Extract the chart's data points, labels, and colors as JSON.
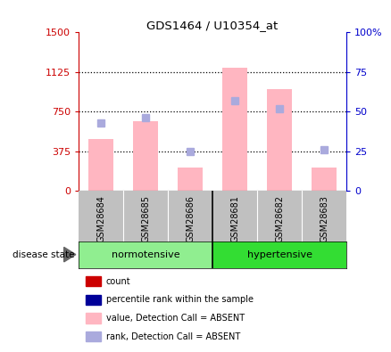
{
  "title": "GDS1464 / U10354_at",
  "samples": [
    "GSM28684",
    "GSM28685",
    "GSM28686",
    "GSM28681",
    "GSM28682",
    "GSM28683"
  ],
  "groups": [
    {
      "label": "normotensive",
      "indices": [
        0,
        1,
        2
      ],
      "color": "#90EE90"
    },
    {
      "label": "hypertensive",
      "indices": [
        3,
        4,
        5
      ],
      "color": "#33DD33"
    }
  ],
  "bar_values": [
    490,
    660,
    225,
    1165,
    960,
    225
  ],
  "rank_values": [
    43,
    46,
    25,
    57,
    52,
    26
  ],
  "left_ylim": [
    0,
    1500
  ],
  "right_ylim": [
    0,
    100
  ],
  "left_yticks": [
    0,
    375,
    750,
    1125,
    1500
  ],
  "right_yticks": [
    0,
    25,
    50,
    75,
    100
  ],
  "left_tick_labels": [
    "0",
    "375",
    "750",
    "1125",
    "1500"
  ],
  "right_tick_labels": [
    "0",
    "25",
    "50",
    "75",
    "100%"
  ],
  "bar_color": "#FFB6C1",
  "rank_color": "#AAAADD",
  "left_axis_color": "#CC0000",
  "right_axis_color": "#0000CC",
  "dotted_lines": [
    375,
    750,
    1125
  ],
  "bar_width": 0.55,
  "legend_items": [
    {
      "label": "count",
      "color": "#CC0000"
    },
    {
      "label": "percentile rank within the sample",
      "color": "#000099"
    },
    {
      "label": "value, Detection Call = ABSENT",
      "color": "#FFB6C1"
    },
    {
      "label": "rank, Detection Call = ABSENT",
      "color": "#AAAADD"
    }
  ],
  "disease_state_label": "disease state",
  "background_sample": "#C0C0C0",
  "background_plot": "#FFFFFF"
}
